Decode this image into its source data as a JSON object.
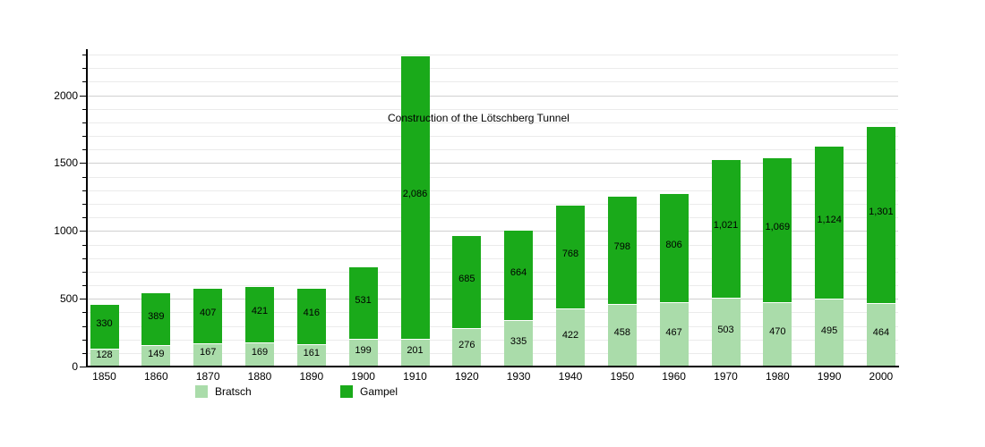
{
  "chart_data": {
    "type": "bar",
    "stacked": true,
    "title": "",
    "xlabel": "",
    "ylabel": "",
    "categories": [
      "1850",
      "1860",
      "1870",
      "1880",
      "1890",
      "1900",
      "1910",
      "1920",
      "1930",
      "1940",
      "1950",
      "1960",
      "1970",
      "1980",
      "1990",
      "2000"
    ],
    "series": [
      {
        "name": "Bratsch",
        "color": "#aadcaa",
        "values": [
          128,
          149,
          167,
          169,
          161,
          199,
          201,
          276,
          335,
          422,
          458,
          467,
          503,
          470,
          495,
          464
        ],
        "labels": [
          "128",
          "149",
          "167",
          "169",
          "161",
          "199",
          "201",
          "276",
          "335",
          "422",
          "458",
          "467",
          "503",
          "470",
          "495",
          "464"
        ]
      },
      {
        "name": "Gampel",
        "color": "#1aaa1a",
        "values": [
          330,
          389,
          407,
          421,
          416,
          531,
          2086,
          685,
          664,
          768,
          798,
          806,
          1021,
          1069,
          1124,
          1301
        ],
        "labels": [
          "330",
          "389",
          "407",
          "421",
          "416",
          "531",
          "2,086",
          "685",
          "664",
          "768",
          "798",
          "806",
          "1,021",
          "1,069",
          "1,124",
          "1,301"
        ]
      }
    ],
    "annotation": "Construction of the Lötschberg Tunnel",
    "y_ticks": [
      0,
      500,
      1000,
      1500,
      2000
    ],
    "y_tick_labels": [
      "0",
      "500",
      "1000",
      "1500",
      "2000"
    ],
    "ylim": [
      0,
      2340
    ],
    "grid_minor_step": 100,
    "grid_major_step": 500,
    "grid": true,
    "legend_position": "bottom"
  }
}
